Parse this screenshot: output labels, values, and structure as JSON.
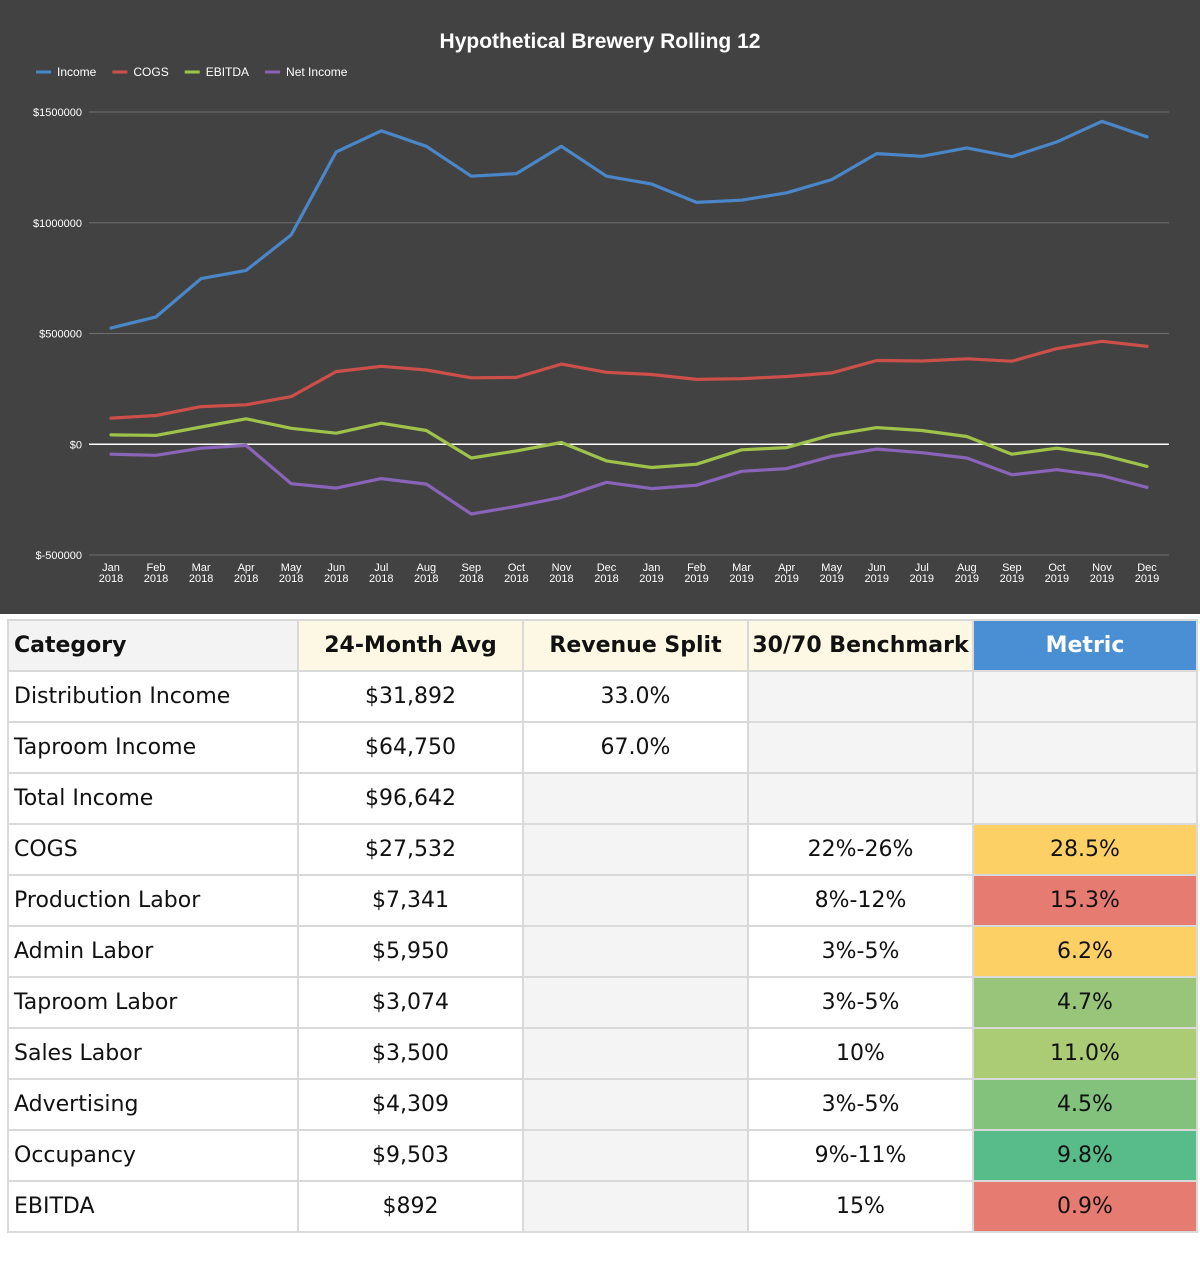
{
  "chart_data": {
    "type": "line",
    "title": "Hypothetical Brewery Rolling 12",
    "legend_position": "top-left",
    "xlabel": "",
    "ylabel": "",
    "ylim": [
      -500000,
      1500000
    ],
    "y_ticks": [
      {
        "value": 1500000,
        "label": "$1500000"
      },
      {
        "value": 1000000,
        "label": "$1000000"
      },
      {
        "value": 500000,
        "label": "$500000"
      },
      {
        "value": 0,
        "label": "$0"
      },
      {
        "value": -500000,
        "label": "$-500000"
      }
    ],
    "categories": [
      {
        "month": "Jan",
        "year": "2018"
      },
      {
        "month": "Feb",
        "year": "2018"
      },
      {
        "month": "Mar",
        "year": "2018"
      },
      {
        "month": "Apr",
        "year": "2018"
      },
      {
        "month": "May",
        "year": "2018"
      },
      {
        "month": "Jun",
        "year": "2018"
      },
      {
        "month": "Jul",
        "year": "2018"
      },
      {
        "month": "Aug",
        "year": "2018"
      },
      {
        "month": "Sep",
        "year": "2018"
      },
      {
        "month": "Oct",
        "year": "2018"
      },
      {
        "month": "Nov",
        "year": "2018"
      },
      {
        "month": "Dec",
        "year": "2018"
      },
      {
        "month": "Jan",
        "year": "2019"
      },
      {
        "month": "Feb",
        "year": "2019"
      },
      {
        "month": "Mar",
        "year": "2019"
      },
      {
        "month": "Apr",
        "year": "2019"
      },
      {
        "month": "May",
        "year": "2019"
      },
      {
        "month": "Jun",
        "year": "2019"
      },
      {
        "month": "Jul",
        "year": "2019"
      },
      {
        "month": "Aug",
        "year": "2019"
      },
      {
        "month": "Sep",
        "year": "2019"
      },
      {
        "month": "Oct",
        "year": "2019"
      },
      {
        "month": "Nov",
        "year": "2019"
      },
      {
        "month": "Dec",
        "year": "2019"
      }
    ],
    "series": [
      {
        "name": "Income",
        "color": "#4a86c8",
        "values": [
          525000,
          575000,
          748000,
          785000,
          945000,
          1320000,
          1415000,
          1345000,
          1210000,
          1222000,
          1345000,
          1210000,
          1175000,
          1092000,
          1102000,
          1135000,
          1195000,
          1312000,
          1300000,
          1338000,
          1298000,
          1365000,
          1458000,
          1388000
        ]
      },
      {
        "name": "COGS",
        "color": "#cd4f4a",
        "values": [
          118000,
          130000,
          170000,
          178000,
          215000,
          328000,
          352000,
          335000,
          300000,
          302000,
          362000,
          325000,
          315000,
          293000,
          296000,
          306000,
          322000,
          378000,
          376000,
          386000,
          375000,
          432000,
          465000,
          442000
        ]
      },
      {
        "name": "EBITDA",
        "color": "#9ec24a",
        "values": [
          42000,
          40000,
          78000,
          115000,
          72000,
          50000,
          95000,
          62000,
          -62000,
          -30000,
          8000,
          -75000,
          -105000,
          -90000,
          -25000,
          -15000,
          42000,
          75000,
          62000,
          35000,
          -45000,
          -18000,
          -48000,
          -100000
        ]
      },
      {
        "name": "Net Income",
        "color": "#8a64b8",
        "values": [
          -45000,
          -50000,
          -18000,
          -5000,
          -178000,
          -198000,
          -155000,
          -180000,
          -315000,
          -280000,
          -240000,
          -172000,
          -200000,
          -185000,
          -122000,
          -110000,
          -55000,
          -22000,
          -38000,
          -62000,
          -138000,
          -115000,
          -142000,
          -195000
        ]
      }
    ]
  },
  "table": {
    "headers": {
      "category": "Category",
      "avg": "24-Month Avg",
      "split": "Revenue Split",
      "benchmark": "30/70 Benchmark",
      "metric": "Metric"
    },
    "rows": [
      {
        "category": "Distribution Income",
        "avg": "$31,892",
        "split": "33.0%",
        "benchmark": "",
        "metric": "",
        "metric_color": ""
      },
      {
        "category": "Taproom Income",
        "avg": "$64,750",
        "split": "67.0%",
        "benchmark": "",
        "metric": "",
        "metric_color": ""
      },
      {
        "category": "Total Income",
        "avg": "$96,642",
        "split": "",
        "benchmark": "",
        "metric": "",
        "metric_color": ""
      },
      {
        "category": "COGS",
        "avg": "$27,532",
        "split": "",
        "benchmark": "22%-26%",
        "metric": "28.5%",
        "metric_color": "#fdd066"
      },
      {
        "category": "Production Labor",
        "avg": "$7,341",
        "split": "",
        "benchmark": "8%-12%",
        "metric": "15.3%",
        "metric_color": "#e67b72"
      },
      {
        "category": "Admin Labor",
        "avg": "$5,950",
        "split": "",
        "benchmark": "3%-5%",
        "metric": "6.2%",
        "metric_color": "#fdd066"
      },
      {
        "category": "Taproom Labor",
        "avg": "$3,074",
        "split": "",
        "benchmark": "3%-5%",
        "metric": "4.7%",
        "metric_color": "#98c57a"
      },
      {
        "category": "Sales Labor",
        "avg": "$3,500",
        "split": "",
        "benchmark": "10%",
        "metric": "11.0%",
        "metric_color": "#accb75"
      },
      {
        "category": "Advertising",
        "avg": "$4,309",
        "split": "",
        "benchmark": "3%-5%",
        "metric": "4.5%",
        "metric_color": "#82c27d"
      },
      {
        "category": "Occupancy",
        "avg": "$9,503",
        "split": "",
        "benchmark": "9%-11%",
        "metric": "9.8%",
        "metric_color": "#57bb8a"
      },
      {
        "category": "EBITDA",
        "avg": "$892",
        "split": "",
        "benchmark": "15%",
        "metric": "0.9%",
        "metric_color": "#e67b72"
      }
    ]
  }
}
